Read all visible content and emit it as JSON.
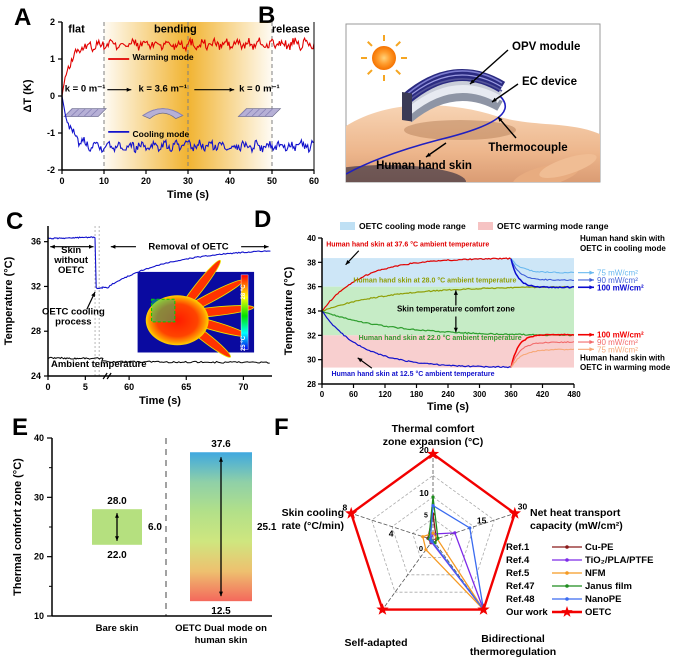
{
  "panels": [
    {
      "letter": "A"
    },
    {
      "letter": "B"
    },
    {
      "letter": "C"
    },
    {
      "letter": "D"
    },
    {
      "letter": "E"
    },
    {
      "letter": "F"
    }
  ],
  "panelB": {
    "labels": {
      "opv": "OPV module",
      "ec": "EC device",
      "thermocouple": "Thermocouple",
      "skin": "Human hand skin"
    }
  },
  "chart_data": [
    {
      "id": "A",
      "type": "line",
      "xlabel": "Time (s)",
      "ylabel": "ΔT (K)",
      "xlim": [
        0,
        60
      ],
      "ylim": [
        -2,
        2
      ],
      "xticks": [
        0,
        10,
        20,
        30,
        40,
        50,
        60
      ],
      "yticks": [
        -2,
        -1,
        0,
        1,
        2
      ],
      "region_labels": [
        "flat",
        "bending",
        "release"
      ],
      "region_boundaries_s": [
        10,
        30,
        50
      ],
      "curvature_labels": [
        "k = 0 m⁻¹",
        "k = 3.6 m⁻¹",
        "k = 0 m⁻¹"
      ],
      "highlight_color": "#f0ae22",
      "series": [
        {
          "name": "Warming mode",
          "color": "#e10000",
          "plateau_K": 1.4
        },
        {
          "name": "Cooling mode",
          "color": "#1212cc",
          "plateau_K": -1.35
        }
      ]
    },
    {
      "id": "C",
      "type": "line",
      "xlabel": "Time (s)",
      "ylabel": "Temperature (°C)",
      "ylim": [
        24,
        37.4
      ],
      "yticks": [
        24,
        28,
        32,
        36
      ],
      "x_axis_break": true,
      "xticks_left": [
        0,
        5
      ],
      "xticks_right": [
        60,
        65,
        70
      ],
      "annotations": {
        "skin_without_lines": [
          "Skin",
          "without",
          "OETC"
        ],
        "removal": "Removal of OETC",
        "cooling_process_lines": [
          "OETC cooling",
          "process"
        ],
        "ambient": "Ambient temperature"
      },
      "series": [
        {
          "name": "Skin temperature",
          "color": "#1212cc",
          "initial_C": 36.3,
          "drop_at_s": 6.3,
          "cooled_C": 31.85,
          "recovered_C": 35.1
        },
        {
          "name": "Ambient temperature",
          "color": "#000000",
          "value_C": 25.5
        }
      ],
      "inset": {
        "type": "thermal-image",
        "colorbar_max": "28 °C",
        "colorbar_min": "25 °C"
      }
    },
    {
      "id": "D",
      "type": "line",
      "xlabel": "Time (s)",
      "ylabel": "Temperature (°C)",
      "xlim": [
        0,
        480
      ],
      "ylim": [
        28,
        40
      ],
      "xticks": [
        0,
        60,
        120,
        180,
        240,
        300,
        360,
        420,
        480
      ],
      "yticks": [
        28,
        30,
        32,
        34,
        36,
        38,
        40
      ],
      "switch_time_s": 360,
      "legend": [
        {
          "label": "OETC cooling mode range",
          "color": "#bfe0f4"
        },
        {
          "label": "OETC warming mode range",
          "color": "#f6c3c3"
        }
      ],
      "bands": [
        {
          "from": 36.0,
          "to": 38.35,
          "color": "#cde6f7"
        },
        {
          "from": 32.0,
          "to": 36.0,
          "color": "#c6ecc6"
        },
        {
          "from": 29.35,
          "to": 32.0,
          "color": "#f8cfcf"
        }
      ],
      "curves": [
        {
          "name": "Human hand skin at 37.6 °C ambient temperature",
          "color": "#e10000",
          "start_C": 34,
          "end_C": 38.3,
          "tau": 75
        },
        {
          "name": "Human hand skin at 28.0 °C ambient temperature",
          "color": "#8f9f08",
          "start_C": 34,
          "end_C": 36.05,
          "tau": 130
        },
        {
          "name": "Human hand skin at 22.0 °C ambient temperature",
          "color": "#2f9e2f",
          "start_C": 34,
          "end_C": 31.95,
          "tau": 130
        },
        {
          "name": "Human hand skin at 12.5 °C ambient temperature",
          "color": "#1212cc",
          "start_C": 34,
          "end_C": 29.35,
          "tau": 75
        }
      ],
      "cooling_branches": [
        {
          "label": "75 mW/cm²",
          "color": "#6ab9ef",
          "final_C": 37.15,
          "bold": false
        },
        {
          "label": "90 mW/cm²",
          "color": "#3f5fd8",
          "final_C": 36.55,
          "bold": false
        },
        {
          "label": "100 mW/cm²",
          "color": "#0a0ad0",
          "final_C": 35.95,
          "bold": true
        }
      ],
      "warming_branches": [
        {
          "label": "100 mW/cm²",
          "color": "#f20000",
          "final_C": 32.05,
          "bold": true
        },
        {
          "label": "90 mW/cm²",
          "color": "#f26b6b",
          "final_C": 31.45,
          "bold": false
        },
        {
          "label": "75 mW/cm²",
          "color": "#f7a878",
          "final_C": 30.85,
          "bold": false
        }
      ],
      "side_labels": {
        "cooling": [
          "Human hand skin with",
          "OETC in cooling mode"
        ],
        "warming": [
          "Human hand skin with",
          "OETC in warming mode"
        ]
      },
      "comfort_label": "Skin temperature comfort zone"
    },
    {
      "id": "E",
      "type": "range-bar",
      "ylabel": "Thermal comfort zone (°C)",
      "ylim": [
        10,
        40
      ],
      "yticks": [
        10,
        20,
        30,
        40
      ],
      "bars": [
        {
          "category_lines": [
            "Bare skin"
          ],
          "low": 22.0,
          "high": 28.0,
          "span": 6.0,
          "low_label": "22.0",
          "high_label": "28.0",
          "span_label": "6.0",
          "fill": "#b5e07f"
        },
        {
          "category_lines": [
            "OETC Dual mode on",
            "human skin"
          ],
          "low": 12.5,
          "high": 37.6,
          "span": 25.1,
          "low_label": "12.5",
          "high_label": "37.6",
          "span_label": "25.1",
          "fill_gradient": [
            "#3fa8e0",
            "#8fd0a8",
            "#b2e089",
            "#cfe67f",
            "#eec06f",
            "#f4685c"
          ]
        }
      ]
    },
    {
      "id": "F",
      "type": "radar",
      "axes": [
        {
          "label_lines": [
            "Thermal comfort",
            "zone expansion (°C)"
          ],
          "max": 20,
          "mid_tick": "10",
          "max_tick": "20",
          "quarter_tick": "5"
        },
        {
          "label_lines": [
            "Net heat transport",
            "capacity (mW/cm²)"
          ],
          "max": 30,
          "mid_tick": "15",
          "max_tick": "30",
          "quarter_tick": ""
        },
        {
          "label_lines": [
            "Bidirectional",
            "thermoregulation"
          ],
          "max": 1,
          "mid_tick": "",
          "max_tick": "",
          "quarter_tick": ""
        },
        {
          "label_lines": [
            "Self-adapted"
          ],
          "max": 1,
          "mid_tick": "",
          "max_tick": "",
          "quarter_tick": ""
        },
        {
          "label_lines": [
            "Skin cooling",
            "rate (°C/min)"
          ],
          "max": 8,
          "mid_tick": "4",
          "max_tick": "8",
          "quarter_tick": ""
        }
      ],
      "center_tick": "0",
      "series": [
        {
          "ref": "Ref.1",
          "name": "Cu-PE",
          "color": "#8b1a1a",
          "star": false,
          "values": [
            6,
            1.2,
            0.04,
            0.04,
            0.5
          ]
        },
        {
          "ref": "Ref.4",
          "name": "TiO₂/PLA/PTFE",
          "color": "#7d2ae8",
          "star": false,
          "values": [
            1.4,
            8,
            1,
            0.03,
            0.25
          ]
        },
        {
          "ref": "Ref.5",
          "name": "NFM",
          "color": "#f59a23",
          "star": false,
          "values": [
            1.6,
            1.5,
            1,
            0.14,
            1.0
          ]
        },
        {
          "ref": "Ref.47",
          "name": "Janus film",
          "color": "#1e8c1e",
          "star": false,
          "values": [
            10,
            1.8,
            0.04,
            0.02,
            0.4
          ]
        },
        {
          "ref": "Ref.48",
          "name": "NanoPE",
          "color": "#3a6bf0",
          "star": false,
          "values": [
            8,
            13.5,
            1,
            0.02,
            0.25
          ]
        },
        {
          "ref": "Our work",
          "name": "OETC",
          "color": "#f20000",
          "star": true,
          "values": [
            20,
            30,
            1,
            1,
            8
          ]
        }
      ]
    }
  ]
}
